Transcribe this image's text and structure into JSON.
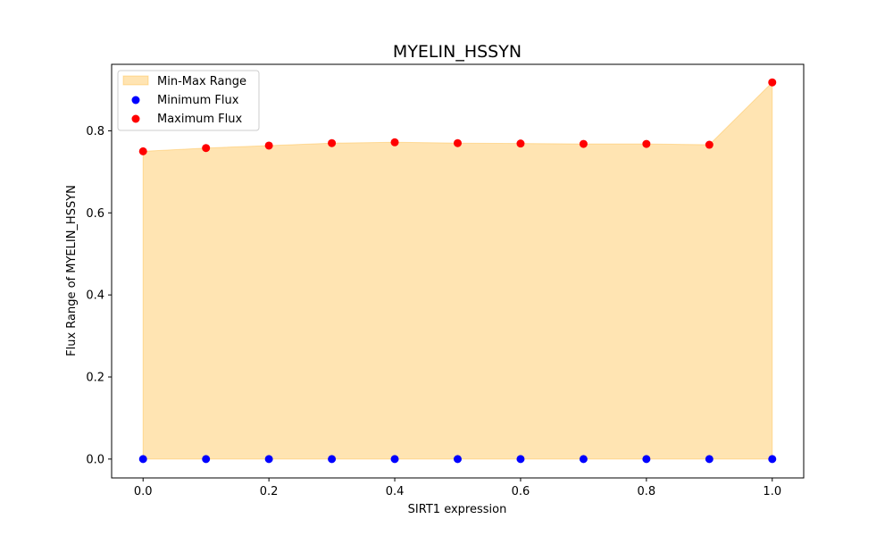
{
  "chart_data": {
    "type": "scatter",
    "title": "MYELIN_HSSYN",
    "xlabel": "SIRT1 expression",
    "ylabel": "Flux Range of MYELIN_HSSYN",
    "x": [
      0.0,
      0.1,
      0.2,
      0.3,
      0.4,
      0.5,
      0.6,
      0.7,
      0.8,
      0.9,
      1.0
    ],
    "series": [
      {
        "name": "Minimum Flux",
        "color": "#0000ff",
        "values": [
          0,
          0,
          0,
          0,
          0,
          0,
          0,
          0,
          0,
          0,
          0
        ]
      },
      {
        "name": "Maximum Flux",
        "color": "#ff0000",
        "values": [
          0.75,
          0.758,
          0.764,
          0.77,
          0.772,
          0.77,
          0.769,
          0.768,
          0.768,
          0.766,
          0.918
        ]
      }
    ],
    "fill": {
      "name": "Min-Max Range",
      "color": "#ffa500",
      "opacity": 0.3
    },
    "xlim": [
      -0.05,
      1.05
    ],
    "ylim": [
      -0.046,
      0.962
    ],
    "xticks": [
      "0.0",
      "0.2",
      "0.4",
      "0.6",
      "0.8",
      "1.0"
    ],
    "xtick_values": [
      0.0,
      0.2,
      0.4,
      0.6,
      0.8,
      1.0
    ],
    "yticks": [
      "0.0",
      "0.2",
      "0.4",
      "0.6",
      "0.8"
    ],
    "ytick_values": [
      0.0,
      0.2,
      0.4,
      0.6,
      0.8
    ],
    "legend_position": "top-left",
    "grid": false
  }
}
